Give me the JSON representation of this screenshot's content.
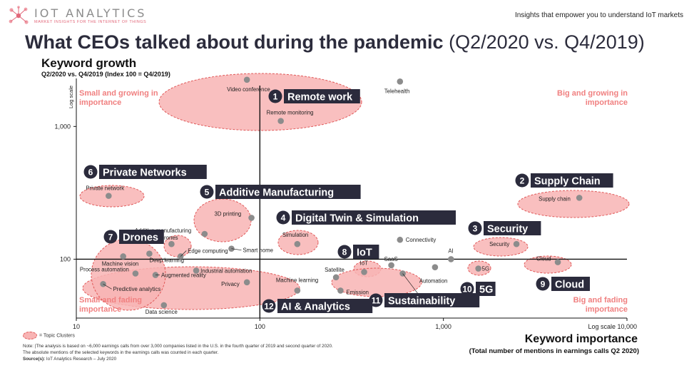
{
  "header": {
    "logo_text": "IOT ANALYTICS",
    "logo_tagline": "MARKET INSIGHTS FOR THE INTERNET OF THINGS",
    "tagline": "Insights that empower you to understand IoT markets"
  },
  "title": {
    "main": "What CEOs talked about during the pandemic",
    "sub": "(Q2/2020 vs. Q4/2019)"
  },
  "footer": {
    "legend": "= Topic Clusters",
    "note": "Note: |The analysis is based on ~6,000 earnings calls from over 3,000 companies listed in the U.S. in the fourth quarter of 2019 and second quarter of 2020.",
    "note2": "The absolute mentions of the selected keywords in the earnings calls was counted in each quarter.",
    "source_label": "Source(s):",
    "source": "IoT Analytics Research – July 2020"
  },
  "colors": {
    "cluster_fill": "#f8b4b4",
    "cluster_stroke": "#e05858",
    "point": "#8c8c8c",
    "label_bg": "#2b2b3c",
    "corner_text": "#f08080"
  },
  "chart_data": {
    "type": "scatter",
    "title": "",
    "ylabel": "Keyword growth",
    "ylabel_sub": "Q2/2020 vs. Q4/2019 (Index 100 = Q4/2019)",
    "xlabel": "Keyword importance",
    "xlabel_sub": "(Total number of mentions in earnings calls Q2 2020)",
    "x_scale": "log",
    "y_scale": "log",
    "x_scale_label": "Log scale",
    "y_scale_label": "Log scale",
    "xlim": [
      10,
      10000
    ],
    "ylim": [
      36,
      2300
    ],
    "x_ticks": [
      {
        "value": 10,
        "label": "10"
      },
      {
        "value": 100,
        "label": "100"
      },
      {
        "value": 1000,
        "label": "1,000"
      },
      {
        "value": 10000,
        "label": "10,000"
      }
    ],
    "y_ticks": [
      {
        "value": 100,
        "label": "100"
      },
      {
        "value": 1000,
        "label": "1,000"
      }
    ],
    "quadrants": {
      "top_left": "Small and growing in importance",
      "top_right": "Big and growing in importance",
      "bottom_left": "Small and fading importance",
      "bottom_right": "Big and fading importance"
    },
    "points": [
      {
        "label": "Video conference",
        "x": 85,
        "y": 2250
      },
      {
        "label": "Telehealth",
        "x": 580,
        "y": 2180
      },
      {
        "label": "Remote monitoring",
        "x": 130,
        "y": 1100
      },
      {
        "label": "Private network",
        "x": 15,
        "y": 300
      },
      {
        "label": "Supply chain",
        "x": 5500,
        "y": 290
      },
      {
        "label": "3D printing",
        "x": 90,
        "y": 205
      },
      {
        "label": "Additive manufacturing",
        "x": 50,
        "y": 155
      },
      {
        "label": "Drones",
        "x": 33,
        "y": 130
      },
      {
        "label": "Smart home",
        "x": 70,
        "y": 120
      },
      {
        "label": "Simulation",
        "x": 160,
        "y": 130
      },
      {
        "label": "Connectivity",
        "x": 580,
        "y": 140
      },
      {
        "label": "Security",
        "x": 2500,
        "y": 130
      },
      {
        "label": "Machine vision",
        "x": 18,
        "y": 105
      },
      {
        "label": "Deep learning",
        "x": 25,
        "y": 110
      },
      {
        "label": "Edge computing",
        "x": 37,
        "y": 105
      },
      {
        "label": "AI",
        "x": 1100,
        "y": 100
      },
      {
        "label": "SaaS",
        "x": 520,
        "y": 90
      },
      {
        "label": "IoT",
        "x": 370,
        "y": 80
      },
      {
        "label": "5G",
        "x": 1550,
        "y": 85
      },
      {
        "label": "Cloud",
        "x": 4200,
        "y": 95
      },
      {
        "label": "Industrial automation",
        "x": 45,
        "y": 82
      },
      {
        "label": "Process automation",
        "x": 21,
        "y": 78
      },
      {
        "label": "Augmented reality",
        "x": 27,
        "y": 76
      },
      {
        "label": "Satellite",
        "x": 260,
        "y": 73
      },
      {
        "label": "Automation",
        "x": 900,
        "y": 87
      },
      {
        "label": "Sustainability",
        "x": 600,
        "y": 78
      },
      {
        "label": "Privacy",
        "x": 85,
        "y": 67
      },
      {
        "label": "Predictive analytics",
        "x": 14,
        "y": 65
      },
      {
        "label": "Machine learning",
        "x": 160,
        "y": 58
      },
      {
        "label": "Emission",
        "x": 275,
        "y": 58
      },
      {
        "label": "Data science",
        "x": 30,
        "y": 45
      }
    ],
    "clusters": [
      {
        "number": "1",
        "name": "Remote work"
      },
      {
        "number": "2",
        "name": "Supply Chain"
      },
      {
        "number": "3",
        "name": "Security"
      },
      {
        "number": "4",
        "name": "Digital Twin & Simulation"
      },
      {
        "number": "5",
        "name": "Additive Manufacturing"
      },
      {
        "number": "6",
        "name": "Private Networks"
      },
      {
        "number": "7",
        "name": "Drones"
      },
      {
        "number": "8",
        "name": "IoT"
      },
      {
        "number": "9",
        "name": "Cloud"
      },
      {
        "number": "10",
        "name": "5G"
      },
      {
        "number": "11",
        "name": "Sustainability"
      },
      {
        "number": "12",
        "name": "AI & Analytics"
      }
    ]
  }
}
